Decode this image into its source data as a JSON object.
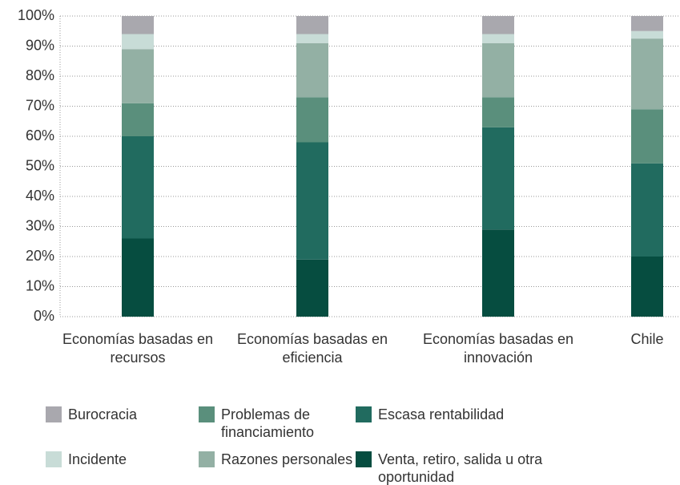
{
  "chart_data": {
    "type": "stacked_bar",
    "categories": [
      "Economías basadas en recursos",
      "Economías basadas en eficiencia",
      "Economías basadas en innovación",
      "Chile"
    ],
    "series": [
      {
        "name": "Venta, retiro, salida u otra oportunidad",
        "color": "#064d40",
        "values": [
          26,
          19,
          29,
          20
        ]
      },
      {
        "name": "Escasa rentabilidad",
        "color": "#216b5f",
        "values": [
          34,
          39,
          34,
          31
        ]
      },
      {
        "name": "Problemas de financiamiento",
        "color": "#5a8f7c",
        "values": [
          11,
          15,
          10,
          18
        ]
      },
      {
        "name": "Razones personales",
        "color": "#93b0a4",
        "values": [
          18,
          18,
          18,
          23.5
        ]
      },
      {
        "name": "Incidente",
        "color": "#c8dcd7",
        "values": [
          5,
          3,
          3,
          2.5
        ]
      },
      {
        "name": "Burocracia",
        "color": "#a9a8ae",
        "values": [
          6,
          6,
          6,
          5
        ]
      }
    ],
    "ylim": [
      0,
      100
    ],
    "yticks": [
      {
        "value": 0,
        "label": "0%"
      },
      {
        "value": 10,
        "label": "10%"
      },
      {
        "value": 20,
        "label": "20%"
      },
      {
        "value": 30,
        "label": "30%"
      },
      {
        "value": 40,
        "label": "40%"
      },
      {
        "value": 50,
        "label": "50%"
      },
      {
        "value": 60,
        "label": "60%"
      },
      {
        "value": 70,
        "label": "70%"
      },
      {
        "value": 80,
        "label": "80%"
      },
      {
        "value": 90,
        "label": "90%"
      },
      {
        "value": 100,
        "label": "100%"
      }
    ],
    "grid": true
  }
}
